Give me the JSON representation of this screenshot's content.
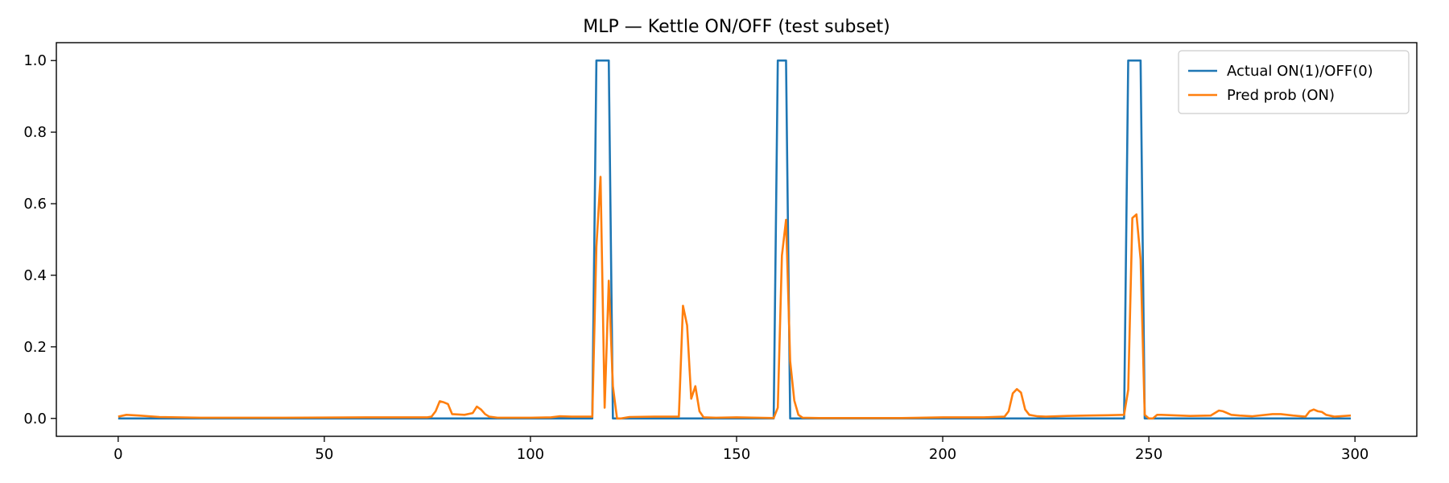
{
  "chart_data": {
    "type": "line",
    "title": "MLP — Kettle ON/OFF (test subset)",
    "xlabel": "",
    "ylabel": "",
    "xlim": [
      -15,
      315
    ],
    "ylim": [
      -0.05,
      1.05
    ],
    "xticks": [
      0,
      50,
      100,
      150,
      200,
      250,
      300
    ],
    "yticks": [
      0.0,
      0.2,
      0.4,
      0.6,
      0.8,
      1.0
    ],
    "xtick_labels": [
      "0",
      "50",
      "100",
      "150",
      "200",
      "250",
      "300"
    ],
    "ytick_labels": [
      "0.0",
      "0.2",
      "0.4",
      "0.6",
      "0.8",
      "1.0"
    ],
    "grid": false,
    "legend_position": "top-right",
    "series": [
      {
        "name": "Actual ON(1)/OFF(0)",
        "color": "#1f77b4",
        "x": [
          0,
          115,
          116,
          119,
          120,
          159,
          160,
          162,
          163,
          244,
          245,
          248,
          249,
          299
        ],
        "y": [
          0,
          0,
          1,
          1,
          0,
          0,
          1,
          1,
          0,
          0,
          1,
          1,
          0,
          0
        ]
      },
      {
        "name": "Pred prob (ON)",
        "color": "#ff7f0e",
        "x": [
          0,
          2,
          5,
          10,
          20,
          40,
          60,
          70,
          75,
          76,
          77,
          78,
          79,
          80,
          81,
          84,
          86,
          87,
          88,
          89,
          90,
          92,
          100,
          105,
          107,
          110,
          115,
          116,
          117,
          118,
          119,
          120,
          121,
          122,
          124,
          130,
          135,
          136,
          137,
          138,
          139,
          140,
          141,
          142,
          145,
          150,
          155,
          159,
          160,
          161,
          162,
          163,
          164,
          165,
          166,
          170,
          190,
          200,
          210,
          215,
          216,
          217,
          218,
          219,
          220,
          221,
          222,
          223,
          225,
          230,
          235,
          240,
          244,
          245,
          246,
          247,
          248,
          249,
          250,
          251,
          252,
          253,
          260,
          265,
          267,
          268,
          270,
          272,
          275,
          280,
          282,
          285,
          288,
          289,
          290,
          291,
          292,
          293,
          295,
          299
        ],
        "y": [
          0.005,
          0.01,
          0.008,
          0.004,
          0.002,
          0.002,
          0.003,
          0.003,
          0.003,
          0.005,
          0.02,
          0.048,
          0.045,
          0.04,
          0.012,
          0.01,
          0.015,
          0.033,
          0.025,
          0.012,
          0.005,
          0.002,
          0.002,
          0.003,
          0.006,
          0.005,
          0.005,
          0.48,
          0.675,
          0.03,
          0.385,
          0.09,
          0.0,
          0.0,
          0.004,
          0.005,
          0.005,
          0.005,
          0.315,
          0.26,
          0.055,
          0.09,
          0.02,
          0.003,
          0.002,
          0.003,
          0.002,
          0.001,
          0.03,
          0.455,
          0.555,
          0.16,
          0.05,
          0.01,
          0.002,
          0.001,
          0.001,
          0.003,
          0.003,
          0.005,
          0.02,
          0.07,
          0.082,
          0.072,
          0.025,
          0.01,
          0.008,
          0.006,
          0.005,
          0.007,
          0.008,
          0.009,
          0.01,
          0.08,
          0.56,
          0.57,
          0.445,
          0.01,
          0.0,
          0.0,
          0.01,
          0.01,
          0.007,
          0.008,
          0.022,
          0.02,
          0.01,
          0.008,
          0.006,
          0.012,
          0.012,
          0.008,
          0.005,
          0.02,
          0.025,
          0.02,
          0.018,
          0.01,
          0.005,
          0.008
        ]
      }
    ]
  }
}
